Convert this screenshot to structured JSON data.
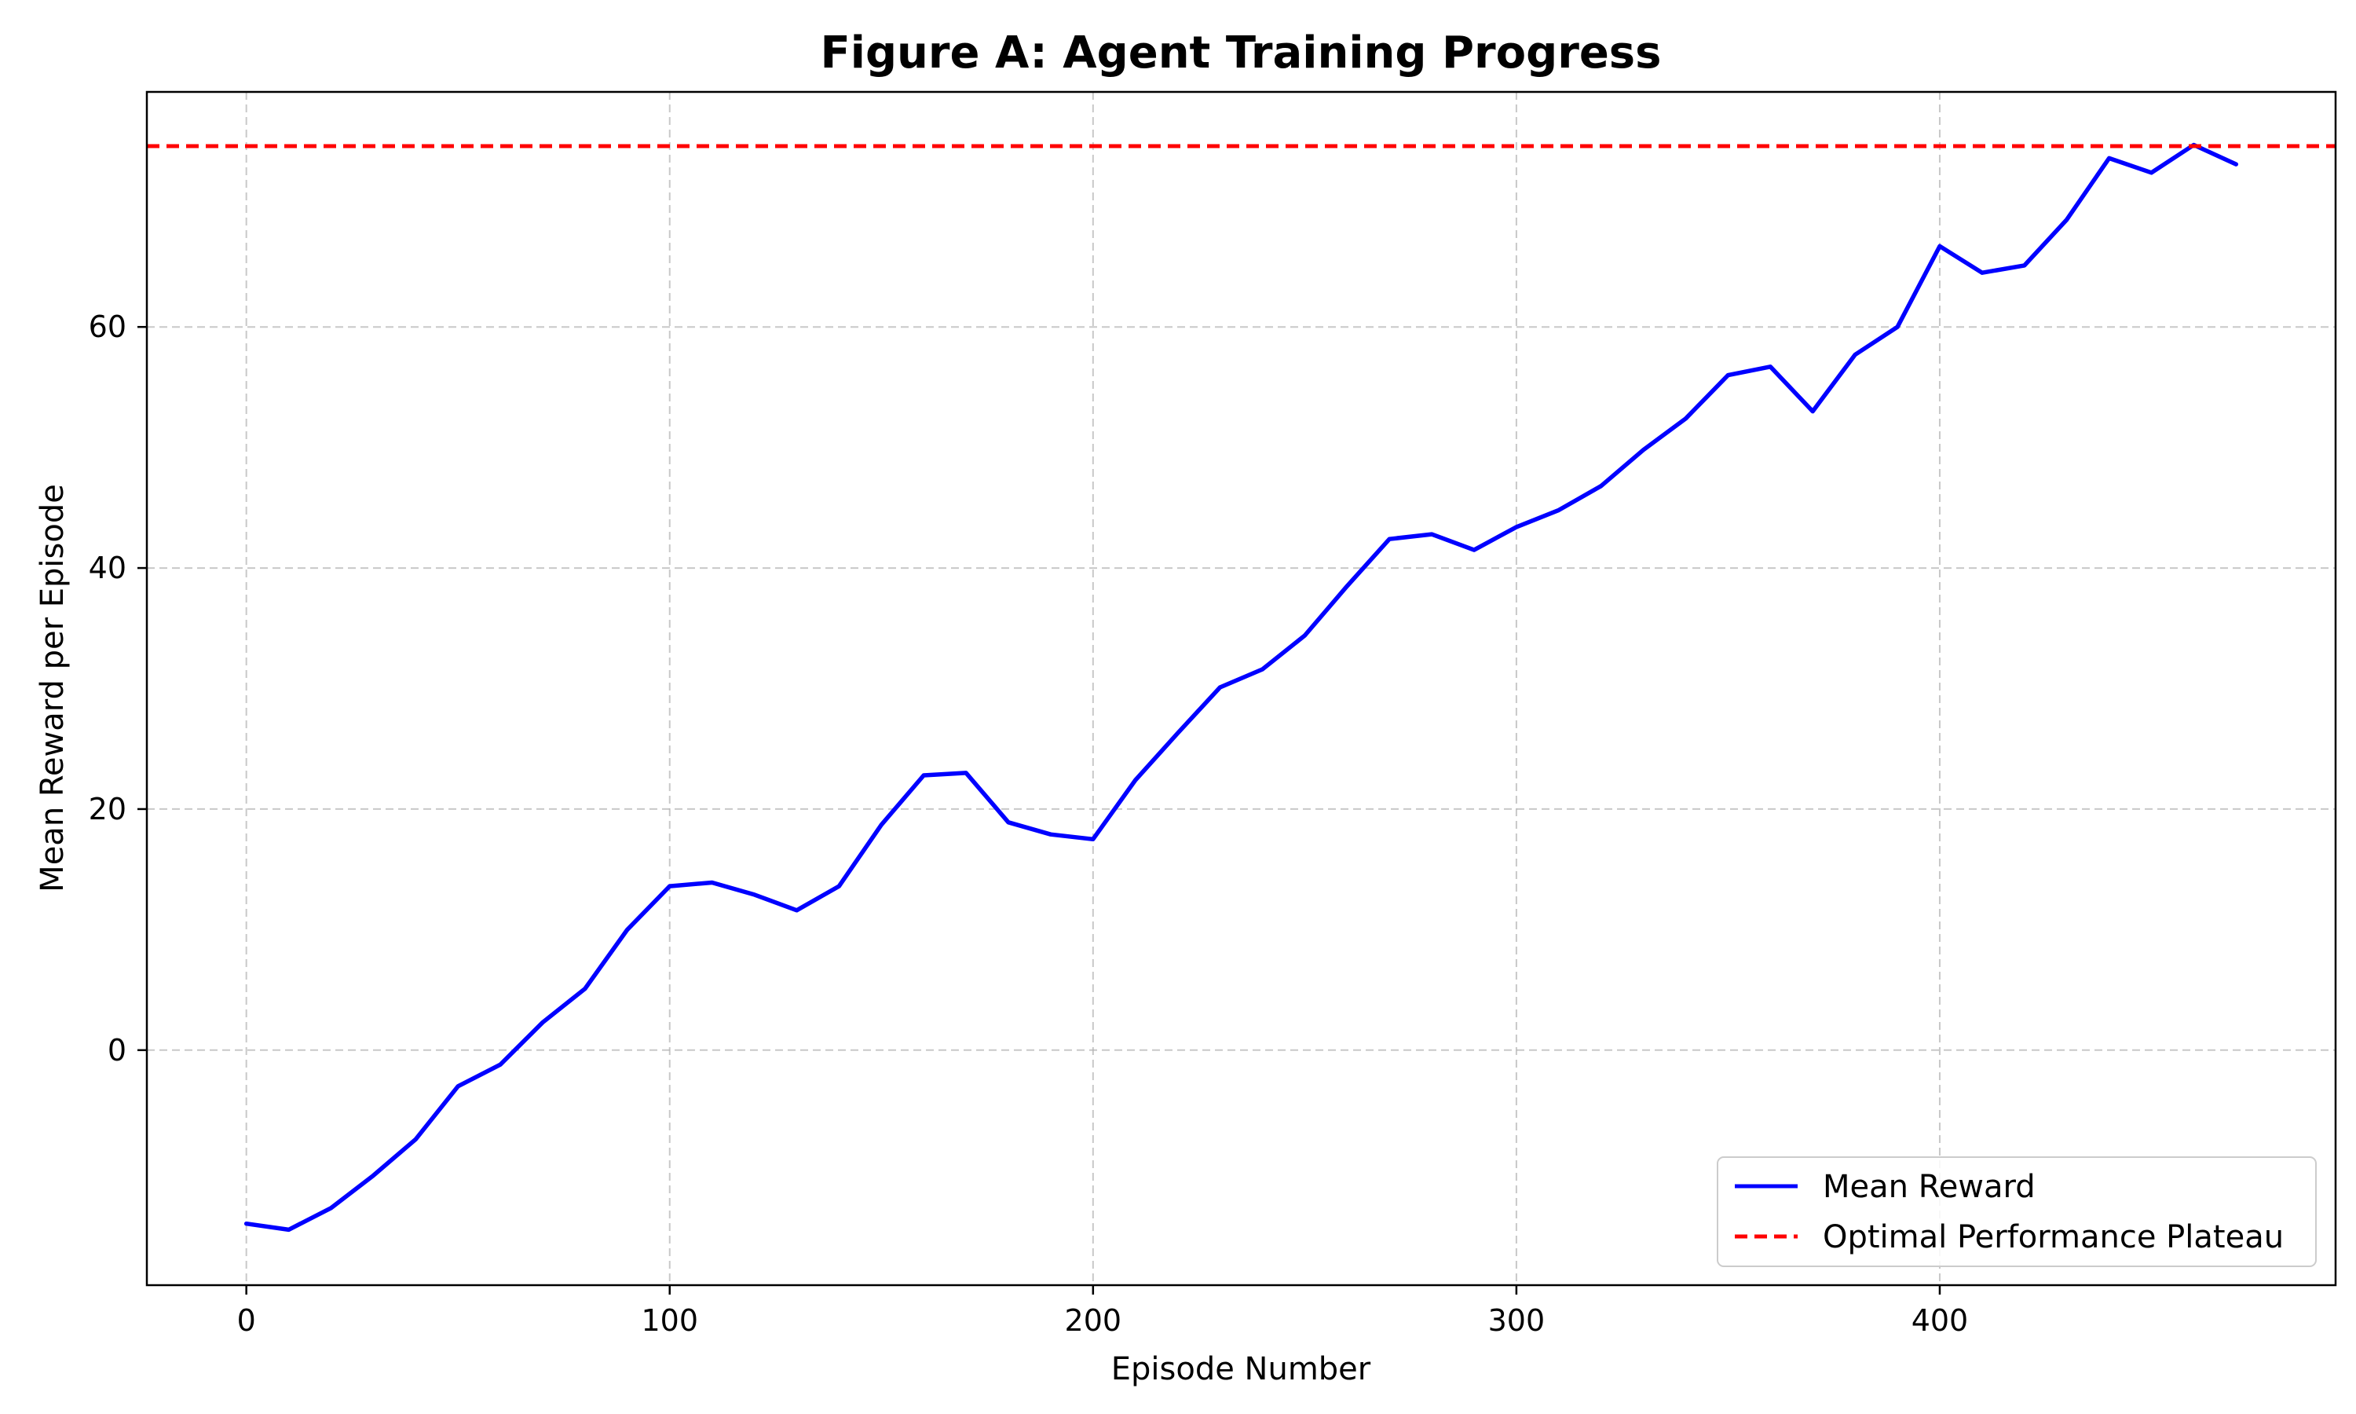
{
  "chart_data": {
    "type": "line",
    "title": "Figure A: Agent Training Progress",
    "xlabel": "Episode Number",
    "ylabel": "Mean Reward per Episode",
    "xlim": [
      -23.5,
      493.5
    ],
    "ylim": [
      -19.5,
      79.5
    ],
    "xticks": [
      0,
      100,
      200,
      300,
      400
    ],
    "yticks": [
      0,
      20,
      40,
      60
    ],
    "grid": true,
    "legend_position": "lower-right",
    "series": [
      {
        "name": "Mean Reward",
        "color": "#0000ff",
        "style": "solid",
        "x": [
          0,
          10,
          20,
          30,
          40,
          50,
          60,
          70,
          80,
          90,
          100,
          110,
          120,
          130,
          140,
          150,
          160,
          170,
          180,
          190,
          200,
          210,
          220,
          230,
          240,
          250,
          260,
          270,
          280,
          290,
          300,
          310,
          320,
          330,
          340,
          350,
          360,
          370,
          380,
          390,
          400,
          410,
          420,
          430,
          440,
          450,
          460,
          470
        ],
        "y": [
          -14.4,
          -14.9,
          -13.1,
          -10.4,
          -7.4,
          -3.0,
          -1.2,
          2.3,
          5.1,
          10.0,
          13.6,
          13.9,
          12.9,
          11.6,
          13.6,
          18.7,
          22.8,
          23.0,
          18.9,
          17.9,
          17.5,
          22.4,
          26.3,
          30.1,
          31.6,
          34.4,
          38.5,
          42.4,
          42.8,
          41.5,
          43.4,
          44.8,
          46.8,
          49.8,
          52.4,
          56.0,
          56.7,
          53.0,
          57.7,
          60.0,
          66.7,
          64.5,
          65.1,
          68.9,
          74.0,
          72.8,
          75.1,
          73.5
        ]
      },
      {
        "name": "Optimal Performance Plateau",
        "color": "#ff0000",
        "style": "dashed",
        "y_constant": 75
      }
    ]
  }
}
